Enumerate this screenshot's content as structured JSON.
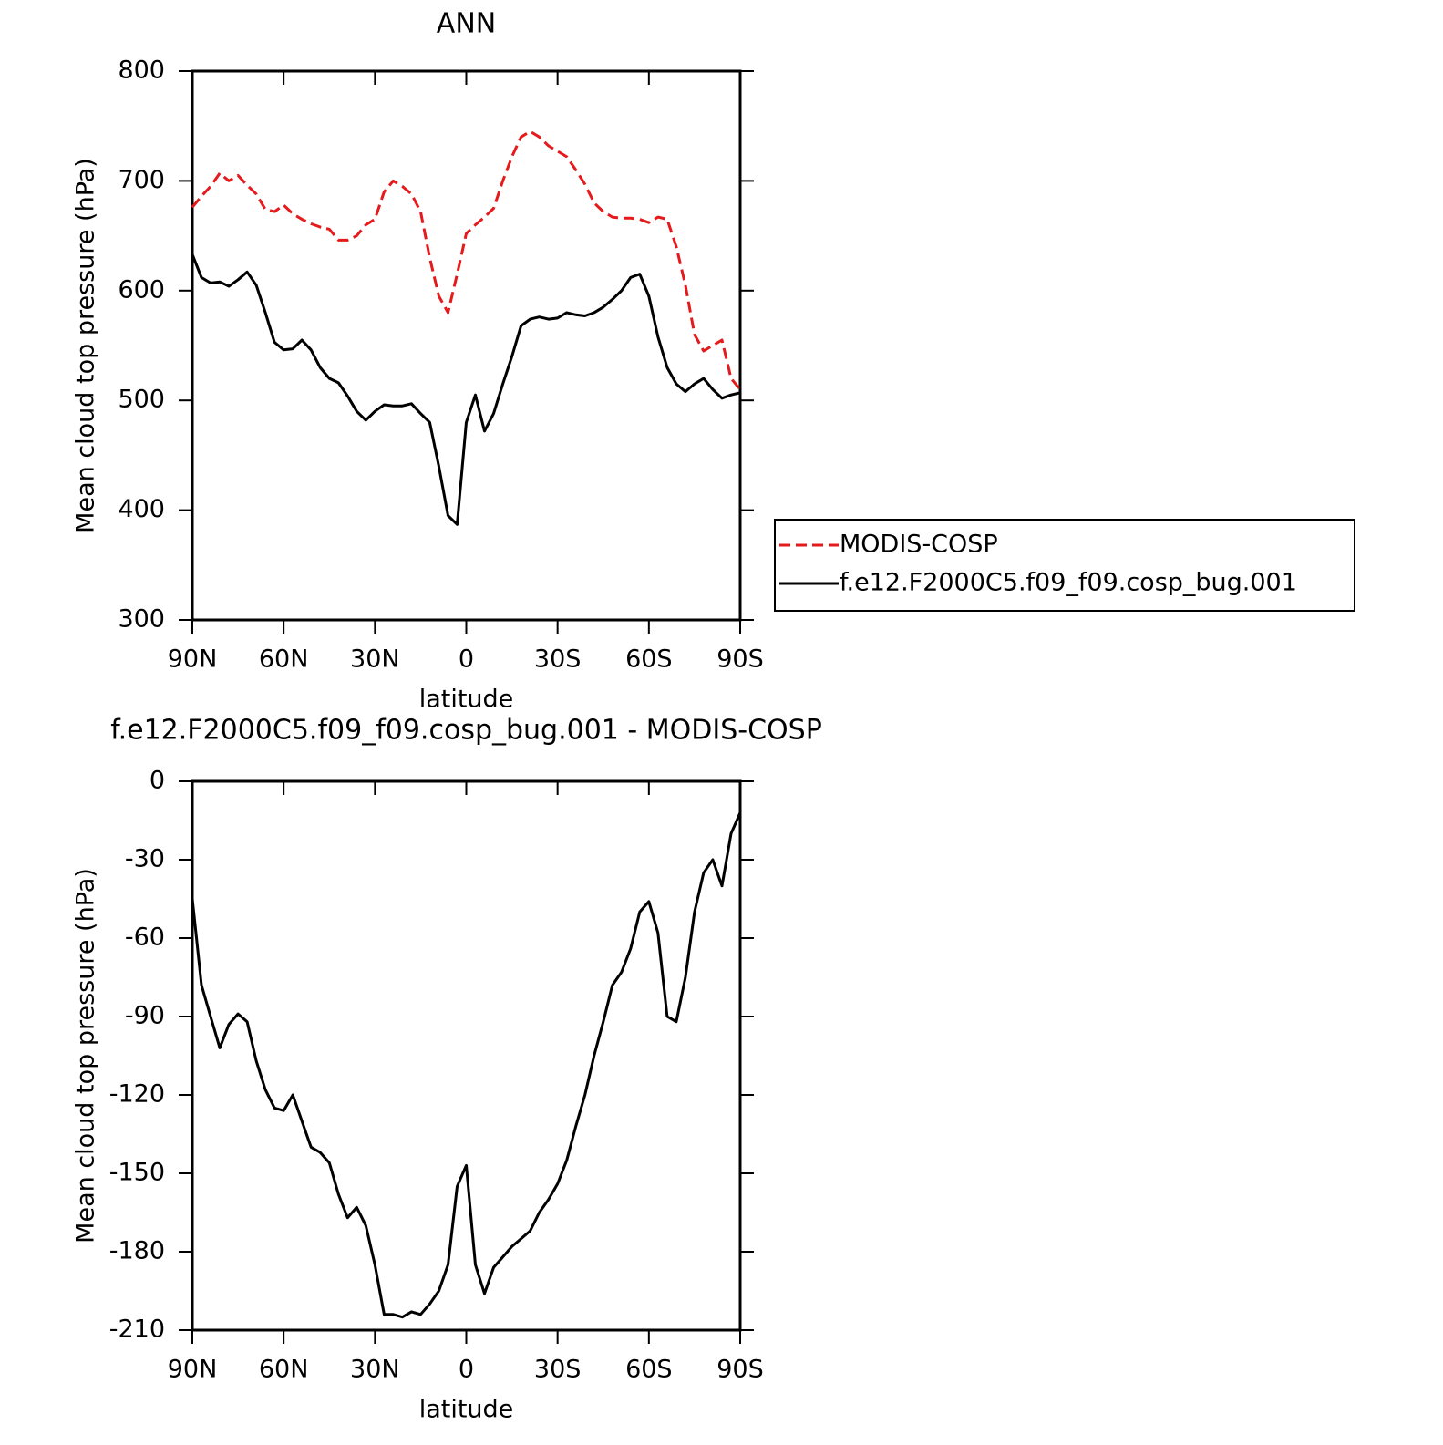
{
  "chart_data": [
    {
      "type": "line",
      "title": "ANN",
      "xlabel": "latitude",
      "ylabel": "Mean cloud top pressure (hPa)",
      "x": [
        90,
        87,
        84,
        81,
        78,
        75,
        72,
        69,
        66,
        63,
        60,
        57,
        54,
        51,
        48,
        45,
        42,
        39,
        36,
        33,
        30,
        27,
        24,
        21,
        18,
        15,
        12,
        9,
        6,
        3,
        0,
        -3,
        -6,
        -9,
        -12,
        -15,
        -18,
        -21,
        -24,
        -27,
        -30,
        -33,
        -36,
        -39,
        -42,
        -45,
        -48,
        -51,
        -54,
        -57,
        -60,
        -63,
        -66,
        -69,
        -72,
        -75,
        -78,
        -81,
        -84,
        -87,
        -90
      ],
      "series": [
        {
          "name": "MODIS-COSP",
          "color": "#e41a1c",
          "dash": true,
          "values": [
            676,
            686,
            695,
            707,
            700,
            705,
            696,
            688,
            674,
            672,
            678,
            670,
            665,
            661,
            658,
            656,
            646,
            646,
            650,
            660,
            665,
            690,
            700,
            695,
            688,
            672,
            630,
            595,
            580,
            615,
            652,
            660,
            667,
            675,
            700,
            722,
            740,
            745,
            740,
            732,
            727,
            722,
            710,
            697,
            680,
            672,
            667,
            666,
            666,
            665,
            662,
            667,
            665,
            640,
            605,
            560,
            545,
            550,
            555,
            520,
            510
          ]
        },
        {
          "name": "f.e12.F2000C5.f09_f09.cosp_bug.001",
          "color": "#000000",
          "dash": false,
          "values": [
            633,
            612,
            607,
            608,
            604,
            610,
            617,
            605,
            580,
            553,
            546,
            547,
            555,
            546,
            530,
            520,
            516,
            504,
            490,
            482,
            490,
            496,
            495,
            495,
            497,
            488,
            480,
            440,
            395,
            387,
            480,
            505,
            472,
            488,
            515,
            540,
            568,
            574,
            576,
            574,
            575,
            580,
            578,
            577,
            580,
            585,
            592,
            600,
            612,
            615,
            595,
            558,
            530,
            515,
            508,
            515,
            520,
            510,
            502,
            505,
            507
          ]
        }
      ],
      "xlim": [
        90,
        -90
      ],
      "xticks": [
        {
          "value": 90,
          "label": "90N"
        },
        {
          "value": 60,
          "label": "60N"
        },
        {
          "value": 30,
          "label": "30N"
        },
        0,
        {
          "value": -30,
          "label": "30S"
        },
        {
          "value": -60,
          "label": "60S"
        },
        {
          "value": -90,
          "label": "90S"
        }
      ],
      "ylim": [
        300,
        800
      ],
      "yticks": [
        300,
        400,
        500,
        600,
        700,
        800
      ],
      "legend": "right"
    },
    {
      "type": "line",
      "title": "f.e12.F2000C5.f09_f09.cosp_bug.001 - MODIS-COSP",
      "xlabel": "latitude",
      "ylabel": "Mean cloud top pressure (hPa)",
      "x": [
        90,
        87,
        84,
        81,
        78,
        75,
        72,
        69,
        66,
        63,
        60,
        57,
        54,
        51,
        48,
        45,
        42,
        39,
        36,
        33,
        30,
        27,
        24,
        21,
        18,
        15,
        12,
        9,
        6,
        3,
        0,
        -3,
        -6,
        -9,
        -12,
        -15,
        -18,
        -21,
        -24,
        -27,
        -30,
        -33,
        -36,
        -39,
        -42,
        -45,
        -48,
        -51,
        -54,
        -57,
        -60,
        -63,
        -66,
        -69,
        -72,
        -75,
        -78,
        -81,
        -84,
        -87,
        -90
      ],
      "series": [
        {
          "color": "#000000",
          "dash": false,
          "values": [
            -45,
            -78,
            -90,
            -102,
            -93,
            -89,
            -92,
            -107,
            -118,
            -125,
            -126,
            -120,
            -130,
            -140,
            -142,
            -146,
            -158,
            -167,
            -163,
            -170,
            -185,
            -204,
            -204,
            -205,
            -203,
            -204,
            -200,
            -195,
            -185,
            -155,
            -147,
            -185,
            -196,
            -186,
            -182,
            -178,
            -175,
            -172,
            -165,
            -160,
            -154,
            -145,
            -132,
            -120,
            -105,
            -92,
            -78,
            -73,
            -64,
            -50,
            -46,
            -58,
            -90,
            -92,
            -75,
            -50,
            -35,
            -30,
            -40,
            -20,
            -12
          ]
        }
      ],
      "xlim": [
        90,
        -90
      ],
      "xticks": [
        {
          "value": 90,
          "label": "90N"
        },
        {
          "value": 60,
          "label": "60N"
        },
        {
          "value": 30,
          "label": "30N"
        },
        0,
        {
          "value": -30,
          "label": "30S"
        },
        {
          "value": -60,
          "label": "60S"
        },
        {
          "value": -90,
          "label": "90S"
        }
      ],
      "ylim": [
        -210,
        0
      ],
      "yticks": [
        -210,
        -180,
        -150,
        -120,
        -90,
        -60,
        -30,
        0
      ]
    }
  ]
}
